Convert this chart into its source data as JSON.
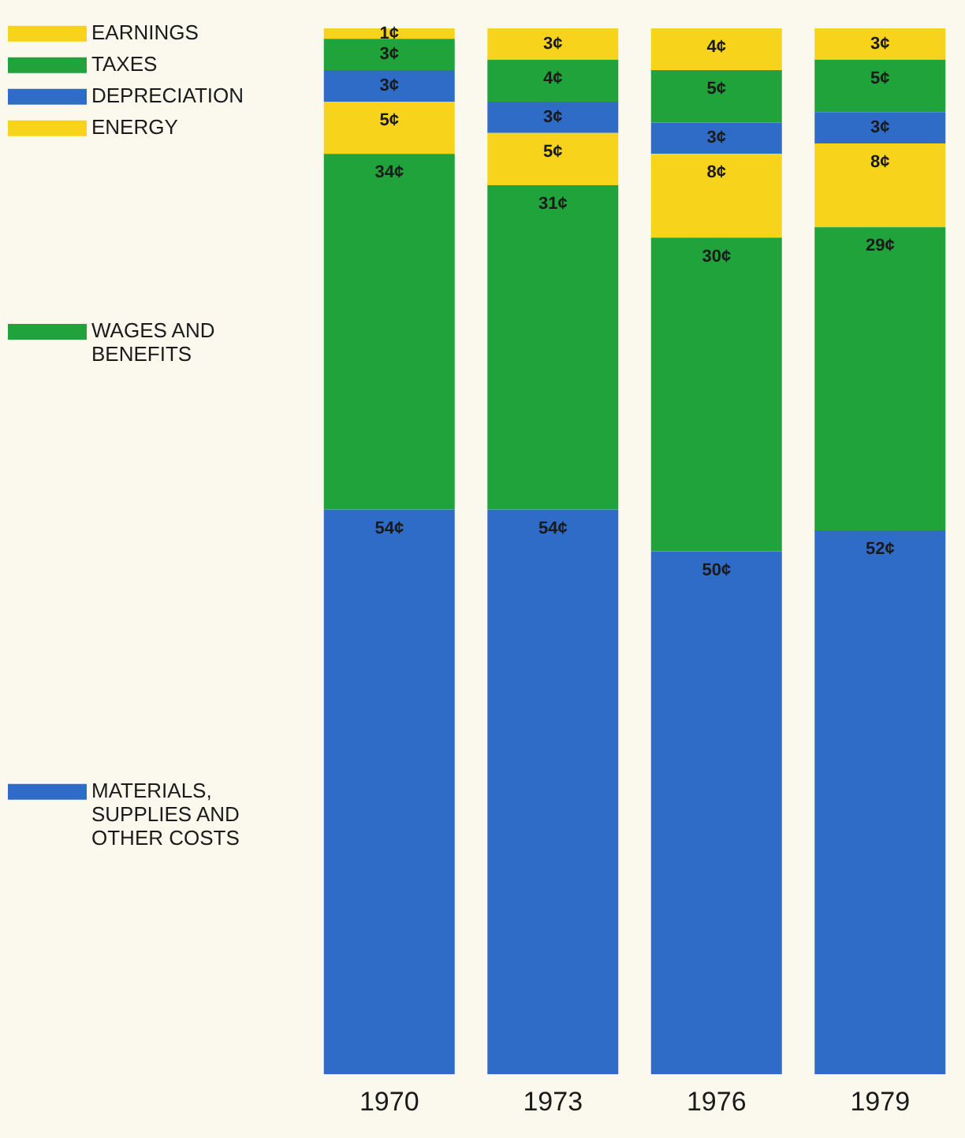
{
  "chart_data": {
    "type": "bar",
    "stacked": true,
    "categories": [
      "1970",
      "1973",
      "1976",
      "1979"
    ],
    "legend": "left",
    "grid": false,
    "tick_labels": "x",
    "series": [
      {
        "name": "MATERIALS, SUPPLIES AND OTHER COSTS",
        "color": "#2f6cc8",
        "values": [
          54,
          54,
          50,
          52
        ],
        "value_labels": [
          "54¢",
          "54¢",
          "50¢",
          "52¢"
        ]
      },
      {
        "name": "WAGES AND BENEFITS",
        "color": "#1fa33a",
        "values": [
          34,
          31,
          30,
          29
        ],
        "value_labels": [
          "34¢",
          "31¢",
          "30¢",
          "29¢"
        ]
      },
      {
        "name": "ENERGY",
        "color": "#f7d31c",
        "values": [
          5,
          5,
          8,
          8
        ],
        "value_labels": [
          "5¢",
          "5¢",
          "8¢",
          "8¢"
        ]
      },
      {
        "name": "DEPRECIATION",
        "color": "#2f6cc8",
        "values": [
          3,
          3,
          3,
          3
        ],
        "value_labels": [
          "3¢",
          "3¢",
          "3¢",
          "3¢"
        ]
      },
      {
        "name": "TAXES",
        "color": "#1fa33a",
        "values": [
          3,
          4,
          5,
          5
        ],
        "value_labels": [
          "3¢",
          "4¢",
          "5¢",
          "5¢"
        ]
      },
      {
        "name": "EARNINGS",
        "color": "#f7d31c",
        "values": [
          1,
          3,
          4,
          3
        ],
        "value_labels": [
          "1¢",
          "3¢",
          "4¢",
          "3¢"
        ]
      }
    ]
  }
}
